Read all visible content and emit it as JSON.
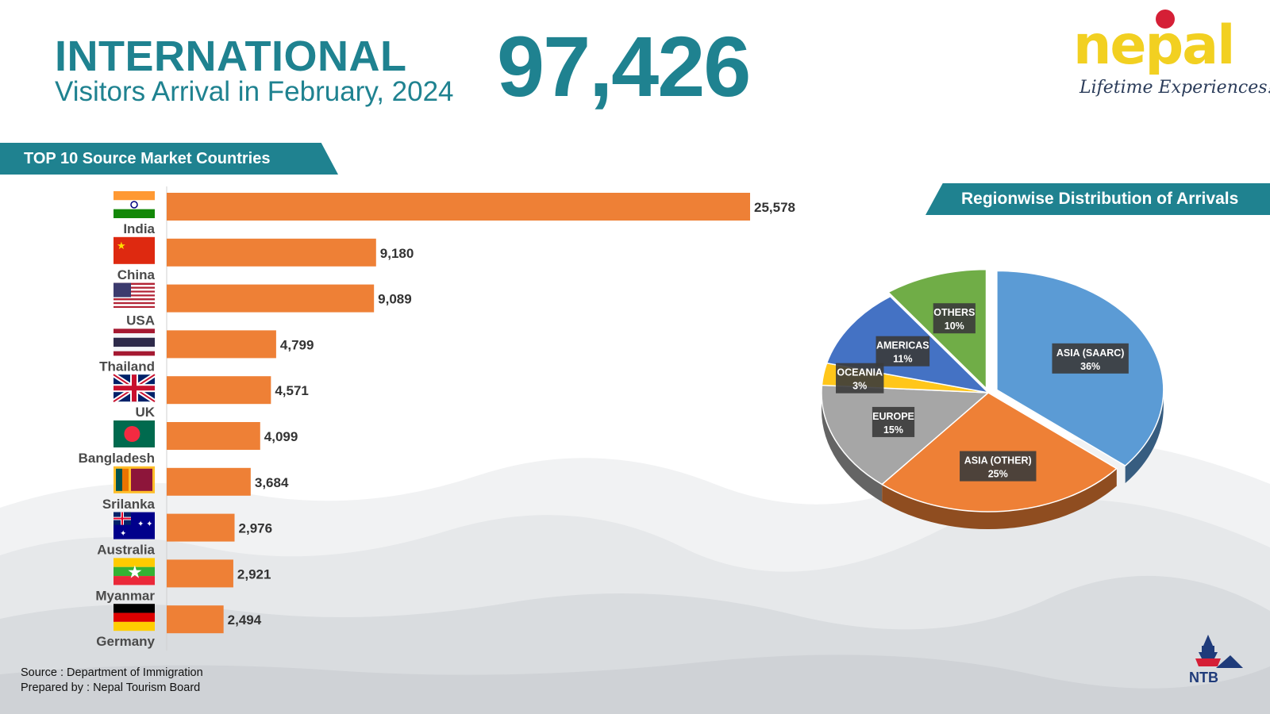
{
  "header": {
    "title": "INTERNATIONAL",
    "subtitle": "Visitors Arrival in February, 2024",
    "total": "97,426"
  },
  "logo": {
    "brand": "nepal",
    "tagline": "Lifetime Experiences!"
  },
  "footer": {
    "source": "Source : Department of Immigration",
    "prepared": "Prepared by : Nepal Tourism Board",
    "badge": "NTB"
  },
  "colors": {
    "accent": "#1f8290",
    "bar": "#ee8036",
    "pie_saarc": "#5b9bd5",
    "pie_other": "#ee8036",
    "pie_europe": "#a6a6a6",
    "pie_oceania": "#ffc61a",
    "pie_americas": "#4472c4",
    "pie_others": "#70ad47"
  },
  "chart_data": [
    {
      "type": "bar",
      "orientation": "horizontal",
      "title": "TOP 10 Source Market Countries",
      "categories": [
        "India",
        "China",
        "USA",
        "Thailand",
        "UK",
        "Bangladesh",
        "Srilanka",
        "Australia",
        "Myanmar",
        "Germany"
      ],
      "values": [
        25578,
        9180,
        9089,
        4799,
        4571,
        4099,
        3684,
        2976,
        2921,
        2494
      ],
      "value_labels": [
        "25,578",
        "9,180",
        "9,089",
        "4,799",
        "4,571",
        "4,099",
        "3,684",
        "2,976",
        "2,921",
        "2,494"
      ],
      "flag_icons": [
        "india-flag-icon",
        "china-flag-icon",
        "usa-flag-icon",
        "thailand-flag-icon",
        "uk-flag-icon",
        "bangladesh-flag-icon",
        "srilanka-flag-icon",
        "australia-flag-icon",
        "myanmar-flag-icon",
        "germany-flag-icon"
      ]
    },
    {
      "type": "pie",
      "title": "Regionwise Distribution of Arrivals",
      "slices": [
        {
          "label": "ASIA (SAARC)",
          "value": 36,
          "text": "36%"
        },
        {
          "label": "ASIA (OTHER)",
          "value": 25,
          "text": "25%"
        },
        {
          "label": "EUROPE",
          "value": 15,
          "text": "15%"
        },
        {
          "label": "OCEANIA",
          "value": 3,
          "text": "3%"
        },
        {
          "label": "AMERICAS",
          "value": 11,
          "text": "11%"
        },
        {
          "label": "OTHERS",
          "value": 10,
          "text": "10%"
        }
      ]
    }
  ]
}
